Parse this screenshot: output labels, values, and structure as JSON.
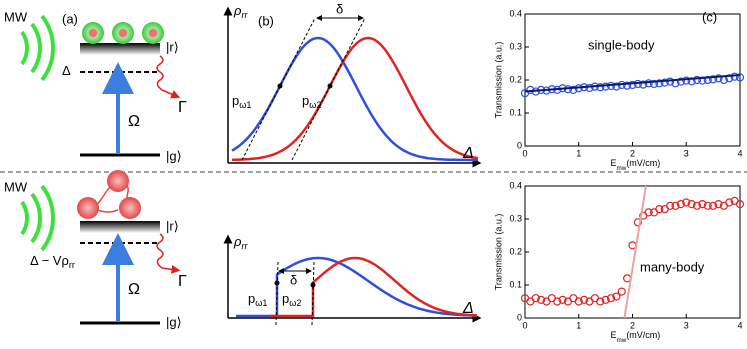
{
  "diagram": {
    "a_label": "(a)",
    "b_label": "(b)",
    "c_label": "(c)",
    "top": {
      "mw": "MW",
      "detuning": [
        "Δ"
      ],
      "rydberg": "|r⟩",
      "ground": "|g⟩",
      "rabi": "Ω",
      "decay": "Γ",
      "rho": [
        "ρ",
        "rr"
      ],
      "delta": "δ",
      "p1": [
        "p",
        "ω1"
      ],
      "p2": [
        "p",
        "ω2"
      ],
      "axis_delta": "Δ"
    },
    "bottom": {
      "mw": "MW",
      "detuning": [
        "Δ − Vρ",
        "rr"
      ],
      "rydberg": "|r⟩",
      "ground": "|g⟩",
      "rabi": "Ω",
      "decay": "Γ",
      "rho": [
        "ρ",
        "rr"
      ],
      "delta": "δ",
      "p1": [
        "p",
        "ω1"
      ],
      "p2": [
        "p",
        "ω2"
      ],
      "axis_delta": "Δ"
    }
  },
  "chart_data": [
    {
      "type": "scatter",
      "annotation": "single-body",
      "ylabel": "Transmission (a.u.)",
      "xlabel": [
        "E",
        "mw",
        "(mV/cm)"
      ],
      "color": "#2f4fe0",
      "x": [
        0,
        0.1,
        0.2,
        0.3,
        0.4,
        0.5,
        0.6,
        0.7,
        0.8,
        0.9,
        1,
        1.1,
        1.2,
        1.3,
        1.4,
        1.5,
        1.6,
        1.7,
        1.8,
        1.9,
        2,
        2.1,
        2.2,
        2.3,
        2.4,
        2.5,
        2.6,
        2.7,
        2.8,
        2.9,
        3,
        3.1,
        3.2,
        3.3,
        3.4,
        3.5,
        3.6,
        3.7,
        3.8,
        3.9,
        4
      ],
      "values": [
        0.16,
        0.17,
        0.165,
        0.17,
        0.168,
        0.172,
        0.17,
        0.175,
        0.172,
        0.17,
        0.175,
        0.178,
        0.176,
        0.18,
        0.178,
        0.18,
        0.182,
        0.18,
        0.185,
        0.183,
        0.185,
        0.188,
        0.186,
        0.19,
        0.188,
        0.19,
        0.192,
        0.195,
        0.19,
        0.195,
        0.198,
        0.196,
        0.2,
        0.198,
        0.2,
        0.202,
        0.205,
        0.2,
        0.205,
        0.21,
        0.208
      ],
      "fit": {
        "x": [
          0,
          4
        ],
        "y": [
          0.165,
          0.215
        ],
        "color": "#0a1a6a"
      },
      "xlim": [
        0,
        4
      ],
      "ylim": [
        0,
        0.4
      ],
      "xticks": [
        0,
        1,
        2,
        3,
        4
      ],
      "yticks": [
        0,
        0.1,
        0.2,
        0.3,
        0.4
      ]
    },
    {
      "type": "scatter",
      "annotation": "many-body",
      "ylabel": "Transmission (a.u.)",
      "xlabel": [
        "E",
        "mw",
        "(mV/cm)"
      ],
      "color": "#e02424",
      "x": [
        0,
        0.1,
        0.2,
        0.3,
        0.4,
        0.5,
        0.6,
        0.7,
        0.8,
        0.9,
        1,
        1.1,
        1.2,
        1.3,
        1.4,
        1.5,
        1.6,
        1.7,
        1.8,
        1.9,
        2,
        2.1,
        2.2,
        2.3,
        2.4,
        2.5,
        2.6,
        2.7,
        2.8,
        2.9,
        3,
        3.1,
        3.2,
        3.3,
        3.4,
        3.5,
        3.6,
        3.7,
        3.8,
        3.9,
        4
      ],
      "values": [
        0.06,
        0.05,
        0.06,
        0.055,
        0.05,
        0.06,
        0.05,
        0.055,
        0.05,
        0.06,
        0.05,
        0.055,
        0.05,
        0.06,
        0.05,
        0.055,
        0.06,
        0.065,
        0.08,
        0.12,
        0.22,
        0.29,
        0.31,
        0.32,
        0.32,
        0.33,
        0.33,
        0.34,
        0.34,
        0.345,
        0.35,
        0.345,
        0.34,
        0.345,
        0.34,
        0.34,
        0.345,
        0.34,
        0.35,
        0.355,
        0.345
      ],
      "fit": {
        "x": [
          1.85,
          2.25
        ],
        "y": [
          0,
          0.4
        ],
        "color": "#f0a0a0"
      },
      "xlim": [
        0,
        4
      ],
      "ylim": [
        0,
        0.4
      ],
      "xticks": [
        0,
        1,
        2,
        3,
        4
      ],
      "yticks": [
        0,
        0.1,
        0.2,
        0.3,
        0.4
      ]
    }
  ]
}
